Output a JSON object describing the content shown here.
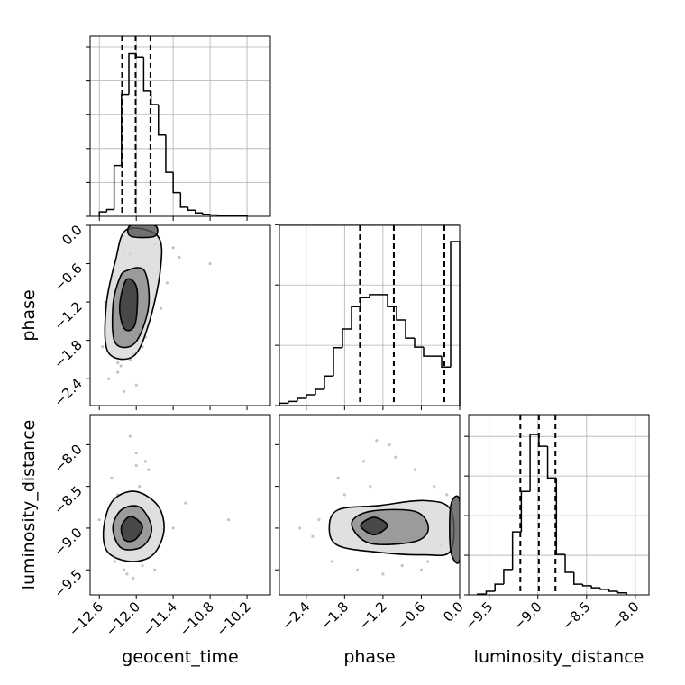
{
  "chart_data": [
    {
      "type": "histogram",
      "color": "#000000",
      "grid": true,
      "bins": [
        -12.6,
        -12.48,
        -12.36,
        -12.24,
        -12.12,
        -12.0,
        -11.88,
        -11.76,
        -11.64,
        -11.52,
        -11.4,
        -11.28,
        -11.16,
        -11.04,
        -10.92,
        -10.8,
        -10.68,
        -10.56,
        -10.44,
        -10.32,
        -10.2
      ],
      "values": [
        0.013,
        0.02,
        0.15,
        0.36,
        0.48,
        0.47,
        0.37,
        0.33,
        0.24,
        0.13,
        0.07,
        0.027,
        0.018,
        0.01,
        0.006,
        0.004,
        0.003,
        0.002,
        0.001,
        0.001
      ],
      "quantiles": [
        -12.23,
        -12.01,
        -11.77
      ],
      "xlim": [
        -12.75,
        -9.82
      ],
      "ylim": [
        0,
        0.532
      ],
      "xticks": [
        -12.6,
        -12.0,
        -11.4,
        -10.8,
        -10.2
      ],
      "yticks": [
        0,
        0.1,
        0.2,
        0.3,
        0.4,
        0.5
      ]
    },
    {
      "type": "density",
      "ylabel": "phase",
      "points": {
        "x": [
          -12.3,
          -12.1,
          -11.9,
          -12.4,
          -12.2,
          -11.7,
          -12.0,
          -12.5,
          -11.5,
          -12.25,
          -11.8,
          -12.35,
          -12.05,
          -11.6,
          -12.45,
          -11.3,
          -12.15,
          -11.95,
          -12.3,
          -10.8,
          -12.55,
          -11.85,
          -12.1,
          -11.4,
          -12.2
        ],
        "y": [
          -2.3,
          -2.1,
          -1.9,
          -1.6,
          -0.4,
          -0.3,
          -2.5,
          -1.2,
          -0.9,
          -2.2,
          -0.2,
          -0.8,
          -2.0,
          -1.3,
          -2.4,
          -0.5,
          -1.1,
          -0.15,
          -2.15,
          -0.6,
          -1.9,
          -1.75,
          -0.45,
          -0.35,
          -2.6
        ]
      },
      "contours": [
        {
          "x": [
            -12.16,
            -11.65,
            -11.61,
            -11.8,
            -12.05,
            -12.46,
            -12.49,
            -12.34
          ],
          "y": [
            -0.07,
            -0.17,
            -0.71,
            -1.55,
            -2.05,
            -1.98,
            -1.27,
            -0.56
          ]
        },
        {
          "x": [
            -12.16,
            -11.87,
            -11.8,
            -12.02,
            -12.34,
            -12.38,
            -12.28
          ],
          "y": [
            -0.71,
            -0.71,
            -1.27,
            -1.84,
            -1.84,
            -1.27,
            -0.85
          ]
        },
        {
          "x": [
            -12.16,
            -11.99,
            -12.02,
            -12.19,
            -12.27
          ],
          "y": [
            -0.85,
            -0.99,
            -1.55,
            -1.62,
            -1.27
          ]
        },
        {
          "x": [
            -12.09,
            -11.7,
            -11.7,
            -12.09
          ],
          "y": [
            0.0,
            0.0,
            -0.17,
            -0.17
          ]
        }
      ],
      "xlim": [
        -12.75,
        -9.82
      ],
      "ylim": [
        -2.82,
        0
      ],
      "xticks": [
        -12.6,
        -12.0,
        -11.4,
        -10.8,
        -10.2
      ],
      "yticks": [
        {
          "value": 0,
          "label": "0.0"
        },
        {
          "value": -0.6,
          "label": "−0.6"
        },
        {
          "value": -1.2,
          "label": "−1.2"
        },
        {
          "value": -1.8,
          "label": "−1.8"
        },
        {
          "value": -2.4,
          "label": "−2.4"
        }
      ]
    },
    {
      "type": "histogram",
      "color": "#000000",
      "grid": true,
      "bins": [
        -2.82,
        -2.679,
        -2.538,
        -2.397,
        -2.256,
        -2.115,
        -1.974,
        -1.833,
        -1.692,
        -1.551,
        -1.41,
        -1.269,
        -1.128,
        -0.987,
        -0.846,
        -0.705,
        -0.564,
        -0.423,
        -0.282,
        -0.141,
        0
      ],
      "values": [
        0.04,
        0.07,
        0.12,
        0.18,
        0.27,
        0.49,
        0.96,
        1.27,
        1.64,
        1.79,
        1.84,
        1.84,
        1.64,
        1.42,
        1.12,
        0.97,
        0.82,
        0.82,
        0.64,
        2.72
      ],
      "quantiles": [
        -1.56,
        -1.03,
        -0.24
      ],
      "xlim": [
        -2.82,
        0
      ],
      "ylim": [
        0,
        2.99
      ],
      "xticks": [
        -2.4,
        -1.8,
        -1.2,
        -0.6,
        0
      ],
      "yticks": [
        0,
        1,
        2,
        3
      ]
    },
    {
      "type": "density",
      "ylabel": "luminosity_distance",
      "xlabel": "geocent_time",
      "points": {
        "x": [
          -12.4,
          -12.0,
          -11.8,
          -12.2,
          -12.05,
          -11.6,
          -12.5,
          -11.4,
          -12.3,
          -12.1,
          -11.9,
          -12.6,
          -11.2,
          -12.0,
          -11.7,
          -12.35,
          -11.95,
          -10.5,
          -12.15,
          -11.85
        ],
        "y": [
          -8.4,
          -8.1,
          -8.3,
          -9.5,
          -9.6,
          -8.8,
          -9.2,
          -9.0,
          -8.6,
          -7.9,
          -9.45,
          -8.9,
          -8.7,
          -8.25,
          -9.5,
          -9.4,
          -8.5,
          -8.9,
          -9.55,
          -8.2
        ]
      },
      "contours": [
        {
          "x": [
            -12.53,
            -12.38,
            -12.02,
            -11.65,
            -11.55,
            -11.73,
            -12.09,
            -12.46
          ],
          "y": [
            -9.0,
            -8.67,
            -8.56,
            -8.73,
            -9.03,
            -9.32,
            -9.4,
            -9.29
          ]
        },
        {
          "x": [
            -12.38,
            -12.24,
            -11.94,
            -11.75,
            -11.9,
            -12.24
          ],
          "y": [
            -9.0,
            -8.78,
            -8.75,
            -9.0,
            -9.22,
            -9.24
          ]
        },
        {
          "x": [
            -12.24,
            -12.09,
            -11.9,
            -12.02,
            -12.19
          ],
          "y": [
            -8.98,
            -8.86,
            -8.98,
            -9.14,
            -9.14
          ]
        }
      ],
      "xlim": [
        -12.75,
        -9.82
      ],
      "ylim": [
        -9.8,
        -7.64
      ],
      "xticks": [
        {
          "value": -12.6,
          "label": "−12.6"
        },
        {
          "value": -12.0,
          "label": "−12.0"
        },
        {
          "value": -11.4,
          "label": "−11.4"
        },
        {
          "value": -10.8,
          "label": "−10.8"
        },
        {
          "value": -10.2,
          "label": "−10.2"
        }
      ],
      "yticks": [
        {
          "value": -8.0,
          "label": "−8.0"
        },
        {
          "value": -8.5,
          "label": "−8.5"
        },
        {
          "value": -9.0,
          "label": "−9.0"
        },
        {
          "value": -9.5,
          "label": "−9.5"
        }
      ]
    },
    {
      "type": "density",
      "xlabel": "phase",
      "points": {
        "x": [
          -2.5,
          -2.2,
          -1.9,
          -1.5,
          -1.1,
          -0.7,
          -0.4,
          -2.0,
          -1.6,
          -1.2,
          -0.9,
          -0.5,
          -0.2,
          -1.8,
          -1.4,
          -1.0,
          -0.6,
          -0.3,
          -2.3,
          -1.3
        ],
        "y": [
          -9.0,
          -8.9,
          -8.4,
          -8.2,
          -8.0,
          -8.3,
          -8.5,
          -9.4,
          -9.5,
          -9.55,
          -9.45,
          -9.4,
          -8.6,
          -8.6,
          -8.5,
          -8.15,
          -9.5,
          -9.2,
          -9.1,
          -7.95
        ]
      },
      "contours": [
        {
          "x": [
            -2.04,
            -1.9,
            -1.26,
            -0.56,
            -0.14,
            -0.14,
            -0.56,
            -1.26,
            -1.9
          ],
          "y": [
            -9.0,
            -8.78,
            -8.73,
            -8.67,
            -8.78,
            -9.27,
            -9.32,
            -9.29,
            -9.21
          ]
        },
        {
          "x": [
            -1.69,
            -1.41,
            -0.7,
            -0.49,
            -0.7,
            -1.41
          ],
          "y": [
            -8.95,
            -8.8,
            -8.8,
            -9.0,
            -9.16,
            -9.18
          ]
        },
        {
          "x": [
            -1.55,
            -1.34,
            -1.13,
            -1.34
          ],
          "y": [
            -8.97,
            -8.87,
            -8.97,
            -9.08
          ]
        },
        {
          "x": [
            -0.14,
            0,
            0,
            -0.14
          ],
          "y": [
            -8.73,
            -8.67,
            -9.38,
            -9.27
          ]
        }
      ],
      "xlim": [
        -2.82,
        0
      ],
      "ylim": [
        -9.8,
        -7.64
      ],
      "xticks": [
        {
          "value": -2.4,
          "label": "−2.4"
        },
        {
          "value": -1.8,
          "label": "−1.8"
        },
        {
          "value": -1.2,
          "label": "−1.2"
        },
        {
          "value": -0.6,
          "label": "−0.6"
        },
        {
          "value": 0,
          "label": "0.0"
        }
      ],
      "yticks": [
        -8.0,
        -8.5,
        -9.0,
        -9.5
      ]
    },
    {
      "type": "histogram",
      "color": "#000000",
      "grid": true,
      "xlabel": "luminosity_distance",
      "bins": [
        -9.62,
        -9.53,
        -9.44,
        -9.35,
        -9.26,
        -9.17,
        -9.08,
        -8.99,
        -8.9,
        -8.81,
        -8.72,
        -8.63,
        -8.54,
        -8.45,
        -8.36,
        -8.27,
        -8.18,
        -8.09
      ],
      "values": [
        0.02,
        0.09,
        0.27,
        0.64,
        1.59,
        2.61,
        4.05,
        3.75,
        2.95,
        1.02,
        0.57,
        0.27,
        0.23,
        0.18,
        0.14,
        0.09,
        0.05
      ],
      "quantiles": [
        -9.18,
        -8.99,
        -8.82
      ],
      "xlim": [
        -9.71,
        -7.86
      ],
      "ylim": [
        0,
        4.55
      ],
      "xticks": [
        {
          "value": -9.5,
          "label": "−9.5"
        },
        {
          "value": -9.0,
          "label": "−9.0"
        },
        {
          "value": -8.5,
          "label": "−8.5"
        },
        {
          "value": -8.0,
          "label": "−8.0"
        }
      ],
      "yticks": [
        0,
        1,
        2,
        3,
        4
      ]
    }
  ]
}
